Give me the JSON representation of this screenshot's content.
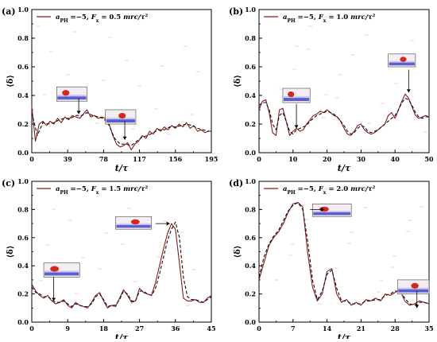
{
  "figure": {
    "panels_ref": "chart_data"
  },
  "chart_data": [
    {
      "type": "line",
      "panel_label": "(a)",
      "legend": {
        "text": "a_PH = −5,  F_x = 0.5 mr_c/τ²",
        "a_part": "a",
        "a_sub": "PH",
        "a_val": " =−5,  ",
        "f_part": "F",
        "f_sub": "x",
        "f_val": " = 0.5 ",
        "unit": "mr_c/τ²",
        "placement": "top-left"
      },
      "xlabel": "t/τ",
      "ylabel": "⟨δ⟩",
      "xlim": [
        0,
        195
      ],
      "ylim": [
        0.0,
        1.0
      ],
      "xticks": [
        0,
        39,
        78,
        117,
        156,
        195
      ],
      "yticks": [
        0.0,
        0.2,
        0.4,
        0.6,
        0.8,
        1.0
      ],
      "grid": false,
      "series": [
        {
          "style": "solid",
          "x": [
            0,
            4,
            8,
            12,
            16,
            20,
            24,
            28,
            32,
            36,
            40,
            44,
            48,
            52,
            56,
            60,
            64,
            68,
            72,
            76,
            80,
            84,
            88,
            92,
            96,
            100,
            104,
            108,
            112,
            116,
            120,
            124,
            128,
            132,
            136,
            140,
            144,
            148,
            152,
            156,
            160,
            164,
            168,
            172,
            176,
            180,
            184,
            188,
            192,
            195
          ],
          "y": [
            0.32,
            0.08,
            0.2,
            0.22,
            0.19,
            0.22,
            0.2,
            0.24,
            0.21,
            0.25,
            0.23,
            0.26,
            0.25,
            0.24,
            0.27,
            0.3,
            0.25,
            0.26,
            0.24,
            0.25,
            0.24,
            0.2,
            0.12,
            0.06,
            0.04,
            0.05,
            0.07,
            0.02,
            0.06,
            0.08,
            0.12,
            0.1,
            0.15,
            0.13,
            0.17,
            0.15,
            0.18,
            0.16,
            0.19,
            0.17,
            0.2,
            0.18,
            0.21,
            0.17,
            0.19,
            0.15,
            0.16,
            0.14,
            0.15,
            0.15
          ]
        },
        {
          "style": "dashed",
          "x": [
            0,
            6,
            12,
            18,
            24,
            30,
            36,
            42,
            48,
            54,
            60,
            66,
            72,
            78,
            84,
            90,
            96,
            102,
            108,
            114,
            120,
            126,
            132,
            138,
            144,
            150,
            156,
            162,
            168,
            174,
            180,
            186,
            192,
            195
          ],
          "y": [
            0.28,
            0.12,
            0.21,
            0.2,
            0.21,
            0.23,
            0.24,
            0.24,
            0.26,
            0.26,
            0.28,
            0.26,
            0.25,
            0.24,
            0.19,
            0.1,
            0.06,
            0.06,
            0.05,
            0.08,
            0.11,
            0.12,
            0.14,
            0.16,
            0.16,
            0.18,
            0.18,
            0.19,
            0.2,
            0.19,
            0.17,
            0.16,
            0.15,
            0.15
          ]
        }
      ],
      "arrows": [
        {
          "x": 51,
          "y_from": 0.38,
          "y_to": 0.27
        },
        {
          "x": 101,
          "y_from": 0.22,
          "y_to": 0.09
        }
      ],
      "insets": [
        {
          "x0": 27,
          "y0": 0.36,
          "x1": 60,
          "y1": 0.46
        },
        {
          "x0": 80,
          "y0": 0.2,
          "x1": 113,
          "y1": 0.3
        }
      ]
    },
    {
      "type": "line",
      "panel_label": "(b)",
      "legend": {
        "a_part": "a",
        "a_sub": "PH",
        "a_val": " =−5,  ",
        "f_part": "F",
        "f_sub": "x",
        "f_val": " = 1.0 ",
        "unit": "mr_c/τ²",
        "placement": "top-left"
      },
      "xlabel": "t/τ",
      "ylabel": "⟨δ⟩",
      "xlim": [
        0,
        50
      ],
      "ylim": [
        0.0,
        1.0
      ],
      "xticks": [
        0,
        10,
        20,
        30,
        40,
        50
      ],
      "yticks": [
        0.0,
        0.2,
        0.4,
        0.6,
        0.8,
        1.0
      ],
      "grid": false,
      "series": [
        {
          "style": "solid",
          "x": [
            0,
            1,
            2,
            3,
            4,
            5,
            6,
            7,
            8,
            9,
            10,
            11,
            12,
            13,
            14,
            15,
            16,
            17,
            18,
            19,
            20,
            21,
            22,
            23,
            24,
            25,
            26,
            27,
            28,
            29,
            30,
            31,
            32,
            33,
            34,
            35,
            36,
            37,
            38,
            39,
            40,
            41,
            42,
            43,
            44,
            45,
            46,
            47,
            48,
            49,
            50
          ],
          "y": [
            0.3,
            0.36,
            0.37,
            0.28,
            0.14,
            0.12,
            0.3,
            0.31,
            0.22,
            0.12,
            0.15,
            0.17,
            0.15,
            0.16,
            0.2,
            0.23,
            0.26,
            0.27,
            0.29,
            0.28,
            0.3,
            0.28,
            0.26,
            0.25,
            0.22,
            0.17,
            0.13,
            0.12,
            0.15,
            0.19,
            0.2,
            0.16,
            0.14,
            0.13,
            0.14,
            0.16,
            0.18,
            0.2,
            0.26,
            0.28,
            0.24,
            0.3,
            0.36,
            0.41,
            0.38,
            0.32,
            0.26,
            0.24,
            0.25,
            0.26,
            0.25
          ]
        },
        {
          "style": "dashed",
          "x": [
            0,
            1,
            2,
            3,
            4,
            5,
            6,
            7,
            8,
            9,
            10,
            11,
            12,
            13,
            14,
            15,
            16,
            17,
            18,
            19,
            20,
            21,
            22,
            23,
            24,
            25,
            26,
            27,
            28,
            29,
            30,
            31,
            32,
            33,
            34,
            35,
            36,
            37,
            38,
            39,
            40,
            41,
            42,
            43,
            44,
            45,
            46,
            47,
            48,
            49,
            50
          ],
          "y": [
            0.33,
            0.35,
            0.35,
            0.3,
            0.2,
            0.16,
            0.26,
            0.28,
            0.22,
            0.15,
            0.13,
            0.16,
            0.17,
            0.18,
            0.19,
            0.22,
            0.24,
            0.26,
            0.27,
            0.28,
            0.29,
            0.28,
            0.27,
            0.25,
            0.22,
            0.19,
            0.15,
            0.13,
            0.14,
            0.17,
            0.19,
            0.18,
            0.15,
            0.14,
            0.15,
            0.16,
            0.18,
            0.2,
            0.22,
            0.24,
            0.26,
            0.3,
            0.35,
            0.38,
            0.37,
            0.33,
            0.28,
            0.25,
            0.24,
            0.25,
            0.25
          ]
        }
      ],
      "arrows": [
        {
          "x": 11,
          "y_from": 0.34,
          "y_to": 0.17
        },
        {
          "x": 44,
          "y_from": 0.58,
          "y_to": 0.42
        }
      ],
      "insets": [
        {
          "x0": 7,
          "y0": 0.35,
          "x1": 15,
          "y1": 0.45
        },
        {
          "x0": 38,
          "y0": 0.6,
          "x1": 46,
          "y1": 0.69
        }
      ]
    },
    {
      "type": "line",
      "panel_label": "(c)",
      "legend": {
        "a_part": "a",
        "a_sub": "PH",
        "a_val": " =−5,  ",
        "f_part": "F",
        "f_sub": "x",
        "f_val": " = 1.5 ",
        "unit": "mr_c/τ²",
        "placement": "top-left"
      },
      "xlabel": "t/τ",
      "ylabel": "⟨δ⟩",
      "xlim": [
        0,
        45
      ],
      "ylim": [
        0.0,
        1.0
      ],
      "xticks": [
        0,
        9,
        18,
        27,
        36,
        45
      ],
      "yticks": [
        0.0,
        0.2,
        0.4,
        0.6,
        0.8,
        1.0
      ],
      "grid": false,
      "series": [
        {
          "style": "solid",
          "x": [
            0,
            1,
            2,
            3,
            4,
            5,
            6,
            7,
            8,
            9,
            10,
            11,
            12,
            13,
            14,
            15,
            16,
            17,
            18,
            19,
            20,
            21,
            22,
            23,
            24,
            25,
            26,
            27,
            28,
            29,
            30,
            31,
            32,
            33,
            34,
            35,
            36,
            37,
            38,
            39,
            40,
            41,
            42,
            43,
            44,
            45
          ],
          "y": [
            0.27,
            0.22,
            0.19,
            0.17,
            0.19,
            0.15,
            0.13,
            0.14,
            0.16,
            0.12,
            0.1,
            0.14,
            0.12,
            0.11,
            0.1,
            0.14,
            0.19,
            0.21,
            0.15,
            0.1,
            0.12,
            0.11,
            0.17,
            0.23,
            0.19,
            0.14,
            0.15,
            0.24,
            0.21,
            0.2,
            0.19,
            0.28,
            0.4,
            0.52,
            0.63,
            0.7,
            0.66,
            0.42,
            0.17,
            0.15,
            0.15,
            0.16,
            0.14,
            0.14,
            0.17,
            0.19
          ]
        },
        {
          "style": "dashed",
          "x": [
            0,
            1,
            2,
            3,
            4,
            5,
            6,
            7,
            8,
            9,
            10,
            11,
            12,
            13,
            14,
            15,
            16,
            17,
            18,
            19,
            20,
            21,
            22,
            23,
            24,
            25,
            26,
            27,
            28,
            29,
            30,
            31,
            32,
            33,
            34,
            35,
            36,
            37,
            38,
            39,
            40,
            41,
            42,
            43,
            44,
            45
          ],
          "y": [
            0.25,
            0.21,
            0.2,
            0.18,
            0.18,
            0.16,
            0.14,
            0.14,
            0.15,
            0.13,
            0.11,
            0.13,
            0.12,
            0.11,
            0.11,
            0.13,
            0.18,
            0.2,
            0.16,
            0.11,
            0.12,
            0.12,
            0.16,
            0.22,
            0.2,
            0.15,
            0.15,
            0.22,
            0.22,
            0.2,
            0.19,
            0.24,
            0.34,
            0.46,
            0.58,
            0.66,
            0.71,
            0.6,
            0.32,
            0.18,
            0.16,
            0.16,
            0.15,
            0.14,
            0.16,
            0.18
          ]
        }
      ],
      "arrows": [
        {
          "x": 5.5,
          "y_from": 0.32,
          "y_to": 0.15
        },
        {
          "x": 31,
          "y_from": 0.7,
          "y_to": 0.7,
          "horizontal": true
        }
      ],
      "insets": [
        {
          "x0": 3,
          "y0": 0.32,
          "x1": 12,
          "y1": 0.42
        },
        {
          "x0": 21,
          "y0": 0.66,
          "x1": 30,
          "y1": 0.75
        }
      ]
    },
    {
      "type": "line",
      "panel_label": "(d)",
      "legend": {
        "a_part": "a",
        "a_sub": "PH",
        "a_val": " =−5,  ",
        "f_part": "F",
        "f_sub": "x",
        "f_val": " = 2.0 ",
        "unit": "mr_c/τ²",
        "placement": "top-left"
      },
      "xlabel": "t/τ",
      "ylabel": "⟨δ⟩",
      "xlim": [
        0,
        35
      ],
      "ylim": [
        0.0,
        1.0
      ],
      "xticks": [
        0,
        7,
        14,
        21,
        28,
        35
      ],
      "yticks": [
        0.0,
        0.2,
        0.4,
        0.6,
        0.8,
        1.0
      ],
      "grid": false,
      "series": [
        {
          "style": "solid",
          "x": [
            0,
            1,
            2,
            3,
            4,
            5,
            6,
            7,
            8,
            9,
            10,
            11,
            12,
            13,
            14,
            15,
            16,
            17,
            18,
            19,
            20,
            21,
            22,
            23,
            24,
            25,
            26,
            27,
            28,
            29,
            30,
            31,
            32,
            33,
            34,
            35
          ],
          "y": [
            0.3,
            0.42,
            0.54,
            0.6,
            0.64,
            0.7,
            0.78,
            0.84,
            0.85,
            0.82,
            0.5,
            0.25,
            0.15,
            0.2,
            0.36,
            0.38,
            0.2,
            0.14,
            0.16,
            0.12,
            0.14,
            0.12,
            0.16,
            0.15,
            0.17,
            0.15,
            0.2,
            0.19,
            0.21,
            0.23,
            0.15,
            0.12,
            0.13,
            0.15,
            0.14,
            0.13
          ]
        },
        {
          "style": "dashed",
          "x": [
            0,
            1,
            2,
            3,
            4,
            5,
            6,
            7,
            8,
            9,
            10,
            11,
            12,
            13,
            14,
            15,
            16,
            17,
            18,
            19,
            20,
            21,
            22,
            23,
            24,
            25,
            26,
            27,
            28,
            29,
            30,
            31,
            32,
            33,
            34,
            35
          ],
          "y": [
            0.32,
            0.46,
            0.55,
            0.61,
            0.65,
            0.72,
            0.79,
            0.83,
            0.85,
            0.8,
            0.58,
            0.3,
            0.16,
            0.22,
            0.34,
            0.37,
            0.24,
            0.15,
            0.15,
            0.13,
            0.13,
            0.13,
            0.15,
            0.15,
            0.16,
            0.16,
            0.19,
            0.2,
            0.22,
            0.22,
            0.17,
            0.13,
            0.12,
            0.14,
            0.14,
            0.13
          ]
        }
      ],
      "arrows": [
        {
          "x": 10.5,
          "y_from": 0.8,
          "y_to": 0.8,
          "horizontal": true
        },
        {
          "x": 32.5,
          "y_from": 0.22,
          "y_to": 0.1
        }
      ],
      "insets": [
        {
          "x0": 11,
          "y0": 0.75,
          "x1": 19,
          "y1": 0.84
        },
        {
          "x0": 28.5,
          "y0": 0.2,
          "x1": 35,
          "y1": 0.3
        }
      ]
    }
  ],
  "colors": {
    "series_solid": "#8b1a1a",
    "series_dashed": "#111111",
    "axis": "#000000",
    "inset_bed": "#5a5fd0",
    "inset_top": "#c8c8f0",
    "inset_blob": "#d02a1e",
    "noise": "#f7b5cf"
  }
}
